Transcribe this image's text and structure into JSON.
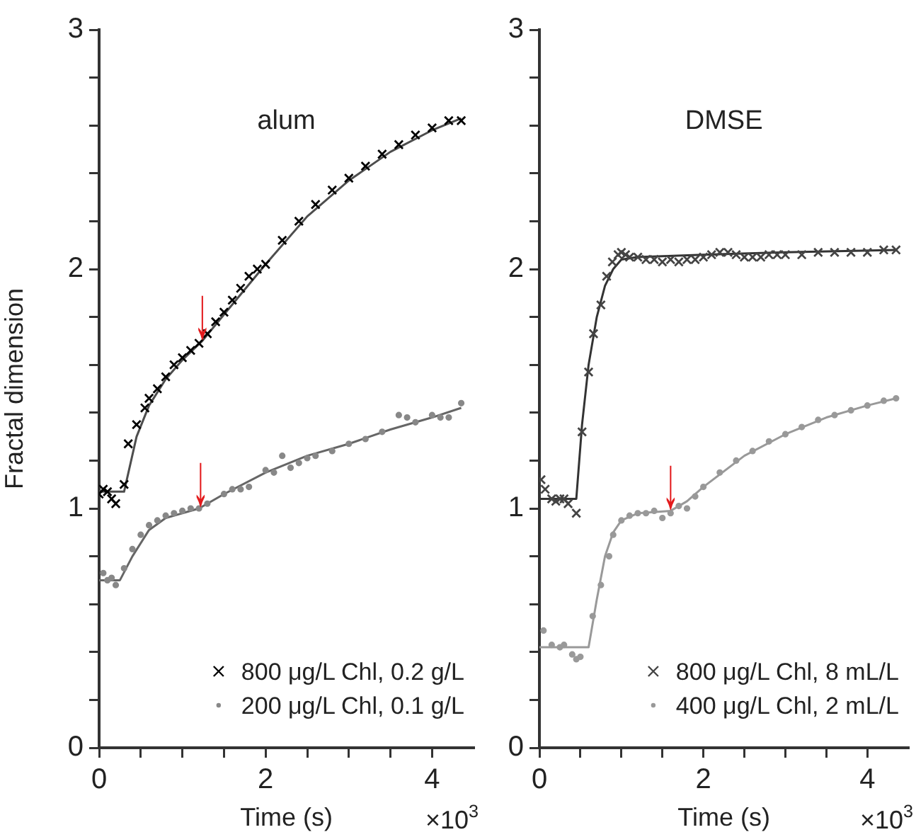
{
  "chart_data": [
    {
      "type": "scatter",
      "title": "alum",
      "xlabel": "Time (s)",
      "ylabel": "Fractal dimension",
      "xlim": [
        0,
        4.5
      ],
      "ylim": [
        0,
        3
      ],
      "xticks": [
        0,
        {
          "value": 0.5,
          "label": null
        },
        {
          "value": 1,
          "label": null
        },
        {
          "value": 1.5,
          "label": null
        },
        2,
        {
          "value": 2.5,
          "label": null
        },
        {
          "value": 3,
          "label": null
        },
        {
          "value": 3.5,
          "label": null
        },
        4
      ],
      "yticks": [
        0,
        {
          "value": 0.2,
          "label": null
        },
        {
          "value": 0.4,
          "label": null
        },
        {
          "value": 0.6,
          "label": null
        },
        {
          "value": 0.8,
          "label": null
        },
        1,
        {
          "value": 1.2,
          "label": null
        },
        {
          "value": 1.4,
          "label": null
        },
        {
          "value": 1.6,
          "label": null
        },
        {
          "value": 1.8,
          "label": null
        },
        2,
        {
          "value": 2.2,
          "label": null
        },
        {
          "value": 2.4,
          "label": null
        },
        {
          "value": 2.6,
          "label": null
        },
        {
          "value": 2.8,
          "label": null
        },
        3
      ],
      "grid": false,
      "legend": "bottom right",
      "series": [
        {
          "name": "800 μg/L Chl, 0.2 g/L",
          "type": "scatter",
          "marker": "cross",
          "color": "#000000",
          "x": [
            0,
            0.05,
            0.1,
            0.15,
            0.2,
            0.3,
            0.35,
            0.45,
            0.55,
            0.6,
            0.7,
            0.8,
            0.9,
            1.0,
            1.1,
            1.2,
            1.3,
            1.4,
            1.5,
            1.6,
            1.7,
            1.8,
            1.9,
            2.0,
            2.2,
            2.4,
            2.6,
            2.8,
            3.0,
            3.2,
            3.4,
            3.6,
            3.8,
            4.0,
            4.2,
            4.35
          ],
          "values": [
            1.06,
            1.08,
            1.07,
            1.04,
            1.02,
            1.1,
            1.27,
            1.35,
            1.42,
            1.46,
            1.5,
            1.55,
            1.6,
            1.63,
            1.66,
            1.69,
            1.73,
            1.78,
            1.82,
            1.87,
            1.92,
            1.97,
            2.0,
            2.02,
            2.12,
            2.2,
            2.27,
            2.33,
            2.38,
            2.43,
            2.48,
            2.52,
            2.56,
            2.59,
            2.62,
            2.62
          ]
        },
        {
          "name": "200 μg/L Chl, 0.1 g/L",
          "type": "scatter",
          "marker": "circle",
          "color": "#888888",
          "x": [
            0.05,
            0.1,
            0.15,
            0.2,
            0.3,
            0.4,
            0.5,
            0.6,
            0.7,
            0.8,
            0.9,
            1.0,
            1.1,
            1.2,
            1.3,
            1.5,
            1.6,
            1.7,
            1.8,
            2.0,
            2.1,
            2.2,
            2.3,
            2.4,
            2.5,
            2.6,
            2.8,
            3.0,
            3.2,
            3.4,
            3.6,
            3.7,
            3.8,
            4.0,
            4.1,
            4.2,
            4.35
          ],
          "values": [
            0.73,
            0.7,
            0.71,
            0.68,
            0.75,
            0.83,
            0.89,
            0.93,
            0.95,
            0.97,
            0.98,
            0.99,
            1.0,
            1.0,
            1.02,
            1.06,
            1.08,
            1.08,
            1.09,
            1.16,
            1.15,
            1.22,
            1.17,
            1.19,
            1.21,
            1.22,
            1.24,
            1.27,
            1.29,
            1.32,
            1.39,
            1.38,
            1.36,
            1.39,
            1.38,
            1.38,
            1.44
          ]
        },
        {
          "type": "line",
          "marker": "none",
          "color": "#4d4d4d",
          "x": [
            0,
            0.3,
            0.45,
            0.6,
            0.8,
            1.0,
            1.24,
            1.5,
            2.0,
            2.5,
            3.0,
            3.5,
            4.0,
            4.35
          ],
          "values": [
            1.07,
            1.07,
            1.3,
            1.43,
            1.54,
            1.62,
            1.7,
            1.81,
            2.02,
            2.22,
            2.37,
            2.49,
            2.58,
            2.63
          ]
        },
        {
          "type": "line",
          "marker": "none",
          "color": "#666666",
          "x": [
            0,
            0.25,
            0.4,
            0.6,
            0.8,
            1.0,
            1.2,
            1.5,
            2.0,
            2.5,
            3.0,
            3.5,
            4.0,
            4.35
          ],
          "values": [
            0.7,
            0.7,
            0.8,
            0.91,
            0.96,
            0.98,
            1.0,
            1.06,
            1.15,
            1.22,
            1.27,
            1.33,
            1.38,
            1.42
          ]
        }
      ],
      "annotations": [
        {
          "text": "↓",
          "x": 1.24,
          "y": 1.7
        },
        {
          "text": "↓",
          "x": 1.22,
          "y": 1.0
        },
        "×10$^{3}$"
      ]
    },
    {
      "type": "scatter",
      "title": "DMSE",
      "xlabel": "Time (s)",
      "xlim": [
        0,
        4.5
      ],
      "ylim": [
        0,
        3
      ],
      "xticks": [
        0,
        {
          "value": 0.5,
          "label": null
        },
        {
          "value": 1,
          "label": null
        },
        {
          "value": 1.5,
          "label": null
        },
        2,
        {
          "value": 2.5,
          "label": null
        },
        {
          "value": 3,
          "label": null
        },
        {
          "value": 3.5,
          "label": null
        },
        4
      ],
      "yticks": [
        0,
        {
          "value": 0.2,
          "label": null
        },
        {
          "value": 0.4,
          "label": null
        },
        {
          "value": 0.6,
          "label": null
        },
        {
          "value": 0.8,
          "label": null
        },
        1,
        {
          "value": 1.2,
          "label": null
        },
        {
          "value": 1.4,
          "label": null
        },
        {
          "value": 1.6,
          "label": null
        },
        {
          "value": 1.8,
          "label": null
        },
        2,
        {
          "value": 2.2,
          "label": null
        },
        {
          "value": 2.4,
          "label": null
        },
        {
          "value": 2.6,
          "label": null
        },
        {
          "value": 2.8,
          "label": null
        },
        3
      ],
      "grid": false,
      "legend": "bottom right",
      "series": [
        {
          "name": "800 μg/L Chl, 8 mL/L",
          "type": "scatter",
          "marker": "cross",
          "color": "#444444",
          "x": [
            0.02,
            0.07,
            0.15,
            0.2,
            0.25,
            0.3,
            0.35,
            0.45,
            0.52,
            0.6,
            0.66,
            0.75,
            0.82,
            0.89,
            0.96,
            1.0,
            1.05,
            1.1,
            1.2,
            1.3,
            1.4,
            1.5,
            1.6,
            1.7,
            1.8,
            1.9,
            2.0,
            2.1,
            2.2,
            2.3,
            2.4,
            2.5,
            2.6,
            2.7,
            2.8,
            2.9,
            3.0,
            3.2,
            3.4,
            3.6,
            3.8,
            4.0,
            4.2,
            4.35
          ],
          "values": [
            1.12,
            1.08,
            1.04,
            1.03,
            1.04,
            1.04,
            1.02,
            0.98,
            1.32,
            1.57,
            1.73,
            1.85,
            1.97,
            2.03,
            2.06,
            2.07,
            2.06,
            2.05,
            2.05,
            2.04,
            2.04,
            2.03,
            2.04,
            2.03,
            2.04,
            2.04,
            2.05,
            2.06,
            2.07,
            2.07,
            2.06,
            2.05,
            2.05,
            2.05,
            2.06,
            2.06,
            2.06,
            2.06,
            2.07,
            2.07,
            2.07,
            2.07,
            2.08,
            2.08
          ]
        },
        {
          "name": "400 μg/L Chl, 2 mL/L",
          "type": "scatter",
          "marker": "circle",
          "color": "#999999",
          "x": [
            0.05,
            0.15,
            0.25,
            0.3,
            0.4,
            0.45,
            0.5,
            0.65,
            0.75,
            0.85,
            0.9,
            1.0,
            1.1,
            1.2,
            1.3,
            1.4,
            1.5,
            1.6,
            1.7,
            1.8,
            1.9,
            2.0,
            2.2,
            2.4,
            2.6,
            2.8,
            3.0,
            3.2,
            3.4,
            3.6,
            3.8,
            4.0,
            4.2,
            4.35
          ],
          "values": [
            0.49,
            0.43,
            0.42,
            0.43,
            0.39,
            0.37,
            0.38,
            0.55,
            0.68,
            0.8,
            0.89,
            0.95,
            0.97,
            0.98,
            0.98,
            0.99,
            0.96,
            0.98,
            1.01,
            1.0,
            1.05,
            1.09,
            1.15,
            1.2,
            1.24,
            1.28,
            1.31,
            1.34,
            1.37,
            1.39,
            1.41,
            1.43,
            1.45,
            1.46
          ]
        },
        {
          "type": "line",
          "marker": "none",
          "color": "#333333",
          "x": [
            0,
            0.45,
            0.52,
            0.6,
            0.7,
            0.8,
            0.9,
            1.0,
            1.2,
            2.0,
            3.0,
            4.35
          ],
          "values": [
            1.04,
            1.04,
            1.35,
            1.6,
            1.8,
            1.93,
            2.0,
            2.04,
            2.05,
            2.06,
            2.07,
            2.08
          ]
        },
        {
          "type": "line",
          "marker": "none",
          "color": "#999999",
          "x": [
            0,
            0.6,
            0.7,
            0.8,
            0.9,
            1.0,
            1.2,
            1.6,
            1.8,
            2.0,
            2.5,
            3.0,
            3.5,
            4.0,
            4.35
          ],
          "values": [
            0.42,
            0.42,
            0.62,
            0.8,
            0.9,
            0.95,
            0.98,
            0.99,
            1.03,
            1.09,
            1.22,
            1.31,
            1.38,
            1.43,
            1.46
          ]
        }
      ],
      "annotations": [
        {
          "text": "↓",
          "x": 1.6,
          "y": 0.99
        },
        "×10$^{3}$"
      ]
    }
  ]
}
